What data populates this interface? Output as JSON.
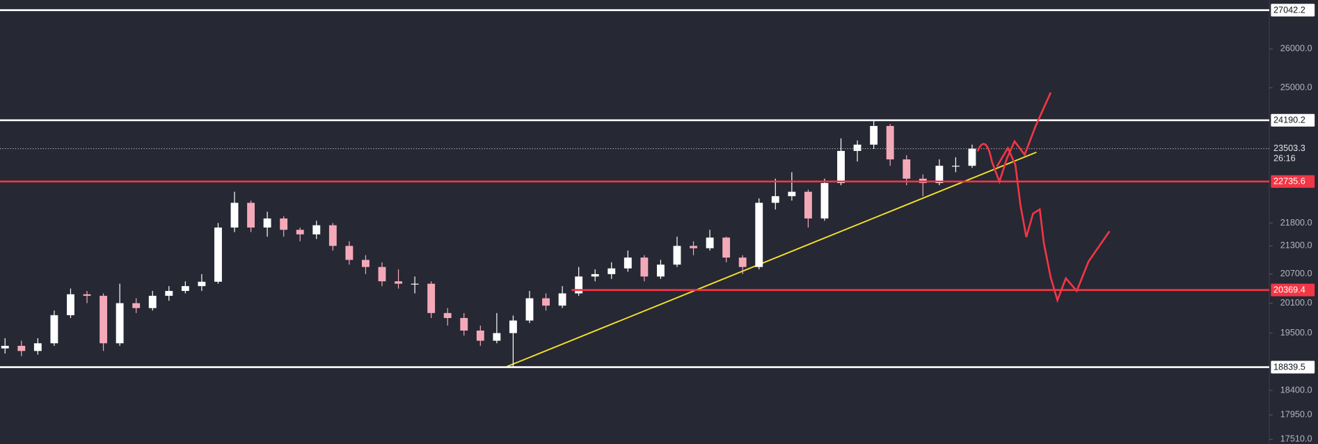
{
  "chart_data": {
    "type": "candlestick",
    "log_scale": true,
    "ylim": [
      17430,
      27320
    ],
    "yticks": [
      {
        "value": 26000,
        "label": "26000.0"
      },
      {
        "value": 25000,
        "label": "25000.0"
      },
      {
        "value": 21800,
        "label": "21800.0"
      },
      {
        "value": 21300,
        "label": "21300.0"
      },
      {
        "value": 20700,
        "label": "20700.0"
      },
      {
        "value": 20100,
        "label": "20100.0"
      },
      {
        "value": 19500,
        "label": "19500.0"
      },
      {
        "value": 18400,
        "label": "18400.0"
      },
      {
        "value": 17950,
        "label": "17950.0"
      },
      {
        "value": 17510,
        "label": "17510.0"
      }
    ],
    "up_color": "#ffffff",
    "down_color": "#f4a9b8",
    "candles": [
      [
        19200,
        19400,
        19100,
        19250
      ],
      [
        19250,
        19350,
        19050,
        19150
      ],
      [
        19150,
        19400,
        19080,
        19300
      ],
      [
        19300,
        19950,
        19250,
        19857
      ],
      [
        19857,
        20400,
        19800,
        20282
      ],
      [
        20282,
        20350,
        20100,
        20250
      ],
      [
        20250,
        20300,
        19150,
        19300
      ],
      [
        19300,
        20500,
        19250,
        20100
      ],
      [
        20100,
        20200,
        19900,
        20000
      ],
      [
        20000,
        20350,
        19950,
        20250
      ],
      [
        20250,
        20450,
        20150,
        20350
      ],
      [
        20350,
        20550,
        20300,
        20450
      ],
      [
        20450,
        20700,
        20350,
        20541
      ],
      [
        20541,
        21800,
        20500,
        21700
      ],
      [
        21700,
        22500,
        21600,
        22250
      ],
      [
        22250,
        22300,
        21600,
        21700
      ],
      [
        21700,
        22050,
        21500,
        21900
      ],
      [
        21900,
        21950,
        21500,
        21650
      ],
      [
        21650,
        21700,
        21400,
        21550
      ],
      [
        21550,
        21850,
        21450,
        21750
      ],
      [
        21750,
        21800,
        21200,
        21300
      ],
      [
        21300,
        21400,
        20900,
        21000
      ],
      [
        21000,
        21100,
        20700,
        20850
      ],
      [
        20850,
        20950,
        20450,
        20550
      ],
      [
        20550,
        20800,
        20400,
        20500
      ],
      [
        20500,
        20650,
        20300,
        20500
      ],
      [
        20500,
        20550,
        19800,
        19900
      ],
      [
        19900,
        20000,
        19650,
        19800
      ],
      [
        19800,
        19900,
        19450,
        19550
      ],
      [
        19550,
        19650,
        19250,
        19350
      ],
      [
        19350,
        19900,
        19300,
        19500
      ],
      [
        19500,
        19850,
        18839.5,
        19750
      ],
      [
        19750,
        20350,
        19700,
        20200
      ],
      [
        20200,
        20300,
        19950,
        20050
      ],
      [
        20050,
        20450,
        20000,
        20300
      ],
      [
        20300,
        20850,
        20250,
        20650
      ],
      [
        20650,
        20800,
        20550,
        20700
      ],
      [
        20700,
        20950,
        20600,
        20820
      ],
      [
        20820,
        21200,
        20750,
        21050
      ],
      [
        21050,
        21100,
        20550,
        20650
      ],
      [
        20650,
        21000,
        20600,
        20900
      ],
      [
        20900,
        21500,
        20850,
        21300
      ],
      [
        21300,
        21400,
        21100,
        21250
      ],
      [
        21250,
        21650,
        21200,
        21480
      ],
      [
        21480,
        21500,
        20950,
        21050
      ],
      [
        21050,
        21100,
        20700,
        20850
      ],
      [
        20850,
        22350,
        20800,
        22250
      ],
      [
        22250,
        22800,
        22100,
        22400
      ],
      [
        22400,
        22950,
        22300,
        22500
      ],
      [
        22500,
        22550,
        21700,
        21900
      ],
      [
        21900,
        22800,
        21850,
        22700
      ],
      [
        22700,
        23750,
        22650,
        23450
      ],
      [
        23450,
        23700,
        23200,
        23600
      ],
      [
        23600,
        24190.2,
        23500,
        24050
      ],
      [
        24050,
        24100,
        23100,
        23250
      ],
      [
        23250,
        23350,
        22650,
        22800
      ],
      [
        22800,
        22900,
        22400,
        22700
      ],
      [
        22700,
        23250,
        22650,
        23100
      ],
      [
        23100,
        23300,
        22950,
        23100
      ],
      [
        23100,
        23600,
        23050,
        23503.3
      ]
    ],
    "levels": [
      {
        "value": 27042.2,
        "color": "#ffffff"
      },
      {
        "value": 24190.2,
        "color": "#ffffff"
      },
      {
        "value": 22735.6,
        "color": "#f23645"
      },
      {
        "value": 20369.4,
        "color": "#f23645"
      },
      {
        "value": 18839.5,
        "color": "#ffffff"
      }
    ],
    "last_price": 23503.3,
    "countdown": "26:16"
  }
}
